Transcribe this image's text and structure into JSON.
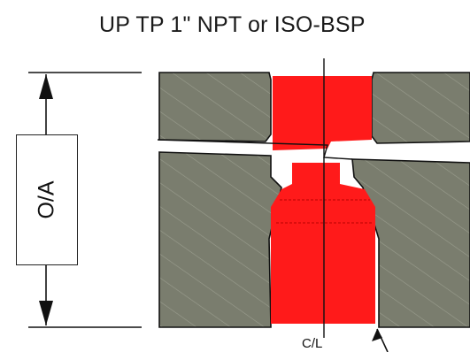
{
  "title": "UP TP 1\" NPT or ISO-BSP",
  "dimension_label": "O/A",
  "centerline_label": "C/L",
  "colors": {
    "body": "#7a7d6e",
    "body_hatch": "#9a9d8e",
    "bore": "#ff1a1a",
    "bore_dash": "#b80000",
    "line": "#111111"
  }
}
